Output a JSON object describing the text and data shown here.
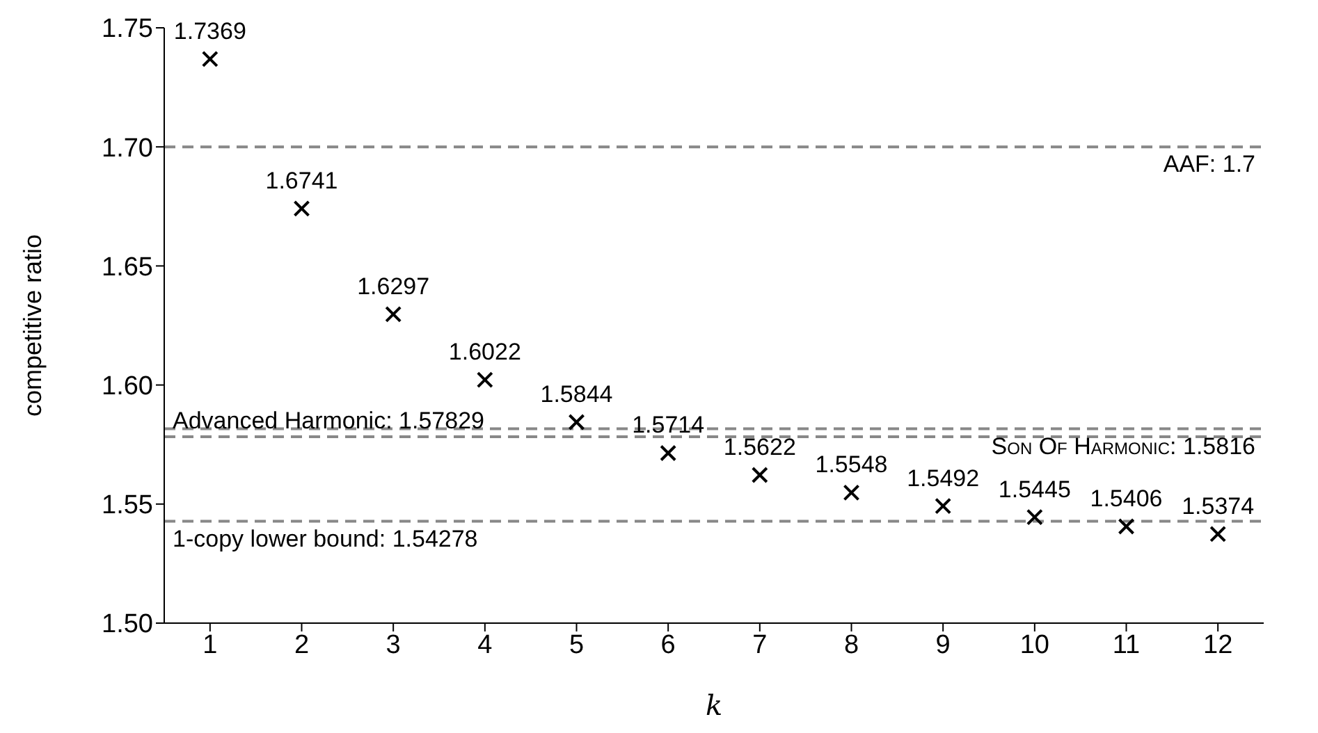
{
  "chart_data": {
    "type": "scatter",
    "xlabel": "k",
    "ylabel": "competitive ratio",
    "x": [
      1,
      2,
      3,
      4,
      5,
      6,
      7,
      8,
      9,
      10,
      11,
      12
    ],
    "series": [
      {
        "color": "#000000",
        "values": [
          1.7369,
          1.6741,
          1.6297,
          1.6022,
          1.5844,
          1.5714,
          1.5622,
          1.5548,
          1.5492,
          1.5445,
          1.5406,
          1.5374
        ]
      }
    ],
    "data_labels": true,
    "marker": "cross",
    "grid": false,
    "xlim": [
      0.5,
      12.5
    ],
    "xticks": [
      1,
      2,
      3,
      4,
      5,
      6,
      7,
      8,
      9,
      10,
      11,
      12
    ],
    "ylim": [
      1.5,
      1.75
    ],
    "yticks": [
      {
        "value": 1.5,
        "label": "1.50"
      },
      {
        "value": 1.55,
        "label": "1.55"
      },
      {
        "value": 1.6,
        "label": "1.60"
      },
      {
        "value": 1.65,
        "label": "1.65"
      },
      {
        "value": 1.7,
        "label": "1.70"
      },
      {
        "value": 1.75,
        "label": "1.75"
      }
    ],
    "ref_lines": [
      {
        "axis": "y",
        "value": 1.7,
        "label": "AAF: 1.7",
        "color": "#888888",
        "line_style": "dashed"
      },
      {
        "axis": "y",
        "value": 1.5816,
        "label": "Son Of Harmonic: 1.5816",
        "color": "#888888",
        "line_style": "dashed"
      },
      {
        "axis": "y",
        "value": 1.57829,
        "label": "Advanced Harmonic: 1.57829",
        "color": "#888888",
        "line_style": "dashed"
      },
      {
        "axis": "y",
        "value": 1.54278,
        "label": "1-copy lower bound: 1.54278",
        "color": "#888888",
        "line_style": "dashed"
      }
    ]
  }
}
